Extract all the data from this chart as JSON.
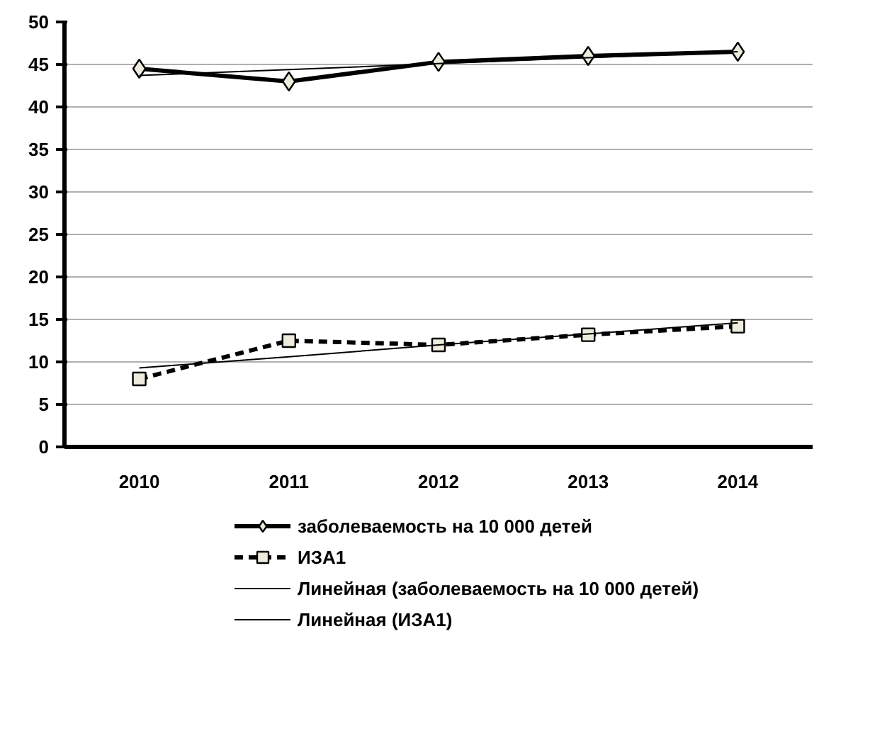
{
  "chart_data": {
    "type": "line",
    "categories": [
      "2010",
      "2011",
      "2012",
      "2013",
      "2014"
    ],
    "ylim": [
      0,
      50
    ],
    "yticks": [
      0,
      5,
      10,
      15,
      20,
      25,
      30,
      35,
      40,
      45,
      50
    ],
    "grid": "y",
    "legend": "bottom",
    "series": [
      {
        "name": "заболеваемость на 10 000 детей",
        "color": "#000000",
        "values": [
          44.5,
          43,
          45.3,
          46,
          46.5
        ],
        "marker": "diamond",
        "line_style": "solid"
      },
      {
        "name": "ИЗА1",
        "color": "#000000",
        "values": [
          8,
          12.5,
          12,
          13.2,
          14.2
        ],
        "marker": "square",
        "line_style": "dashed"
      },
      {
        "name": "Линейная (заболеваемость на 10 000 детей)",
        "color": "#000000",
        "values": [
          43.7,
          44.4,
          45.1,
          45.8,
          46.5
        ],
        "marker": "none",
        "line_style": "solid"
      },
      {
        "name": "Линейная (ИЗА1)",
        "color": "#000000",
        "values": [
          9.3,
          10.6,
          12,
          13.3,
          14.6
        ],
        "marker": "none",
        "line_style": "solid"
      }
    ]
  }
}
